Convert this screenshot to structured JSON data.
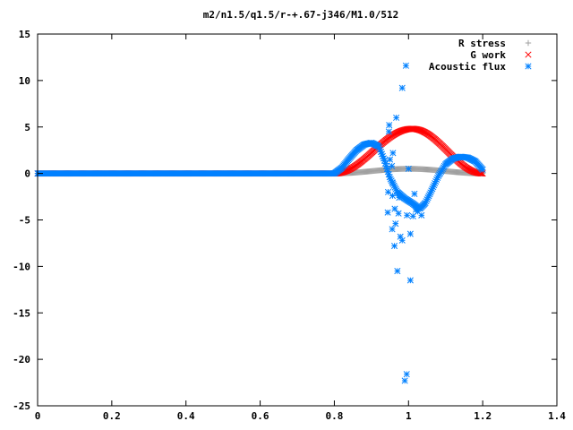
{
  "chart_data": {
    "type": "scatter",
    "title": "m2/n1.5/q1.5/r-+.67-j346/M1.0/512",
    "xlabel": "",
    "ylabel": "",
    "xlim": [
      0,
      1.4
    ],
    "ylim": [
      -25,
      15
    ],
    "x_ticks": [
      "0",
      "0.2",
      "0.4",
      "0.6",
      "0.8",
      "1",
      "1.2",
      "1.4"
    ],
    "y_ticks": [
      "15",
      "10",
      "5",
      "0",
      "-5",
      "-10",
      "-15",
      "-20",
      "-25"
    ],
    "grid": false,
    "legend_position": "top-right",
    "series": [
      {
        "name": "R stress",
        "marker": "plus",
        "color": "#a0a0a0",
        "x_range": [
          0,
          1.2
        ],
        "profile": "zero_then_bump",
        "params": {
          "start": 0.8,
          "end": 1.2,
          "peak_x": 1.0,
          "peak_y": 0.5,
          "points": 512
        }
      },
      {
        "name": "G work",
        "marker": "cross",
        "color": "#ff0000",
        "x_range": [
          0,
          1.2
        ],
        "profile": "zero_then_bump",
        "params": {
          "start": 0.8,
          "end": 1.2,
          "peak_x": 1.01,
          "peak_y": 4.8,
          "points": 512
        }
      },
      {
        "name": "Acoustic flux",
        "marker": "star",
        "color": "#0080ff",
        "x_range": [
          0,
          1.2
        ],
        "curve_points": [
          [
            0.8,
            0.0
          ],
          [
            0.82,
            0.6
          ],
          [
            0.84,
            1.6
          ],
          [
            0.86,
            2.5
          ],
          [
            0.88,
            3.1
          ],
          [
            0.9,
            3.3
          ],
          [
            0.92,
            2.9
          ],
          [
            0.935,
            1.4
          ],
          [
            0.95,
            -0.5
          ],
          [
            0.97,
            -2.0
          ],
          [
            0.99,
            -2.7
          ],
          [
            1.01,
            -3.2
          ],
          [
            1.03,
            -3.8
          ],
          [
            1.045,
            -3.2
          ],
          [
            1.06,
            -2.0
          ],
          [
            1.08,
            -0.3
          ],
          [
            1.1,
            1.0
          ],
          [
            1.12,
            1.6
          ],
          [
            1.14,
            1.8
          ],
          [
            1.16,
            1.7
          ],
          [
            1.18,
            1.3
          ],
          [
            1.2,
            0.4
          ]
        ],
        "scatter_points": [
          [
            0.993,
            11.6
          ],
          [
            0.983,
            9.2
          ],
          [
            0.967,
            6.0
          ],
          [
            0.948,
            5.2
          ],
          [
            0.947,
            4.5
          ],
          [
            0.958,
            2.2
          ],
          [
            0.95,
            1.5
          ],
          [
            0.955,
            0.8
          ],
          [
            0.957,
            -1.0
          ],
          [
            0.945,
            -2.0
          ],
          [
            0.957,
            -2.4
          ],
          [
            0.963,
            -3.8
          ],
          [
            0.944,
            -4.2
          ],
          [
            0.956,
            -6.0
          ],
          [
            0.965,
            -5.4
          ],
          [
            0.973,
            -4.3
          ],
          [
            0.962,
            -7.8
          ],
          [
            0.983,
            -7.2
          ],
          [
            0.97,
            -10.5
          ],
          [
            0.978,
            -6.8
          ],
          [
            0.996,
            -4.5
          ],
          [
            1.005,
            -6.5
          ],
          [
            1.005,
            -11.5
          ],
          [
            1.012,
            -4.6
          ],
          [
            1.016,
            -2.2
          ],
          [
            1.02,
            -3.9
          ],
          [
            1.025,
            -4.1
          ],
          [
            0.995,
            -21.6
          ],
          [
            0.99,
            -22.3
          ],
          [
            1.0,
            0.5
          ],
          [
            0.975,
            -2.6
          ],
          [
            1.035,
            -4.5
          ]
        ]
      }
    ]
  }
}
